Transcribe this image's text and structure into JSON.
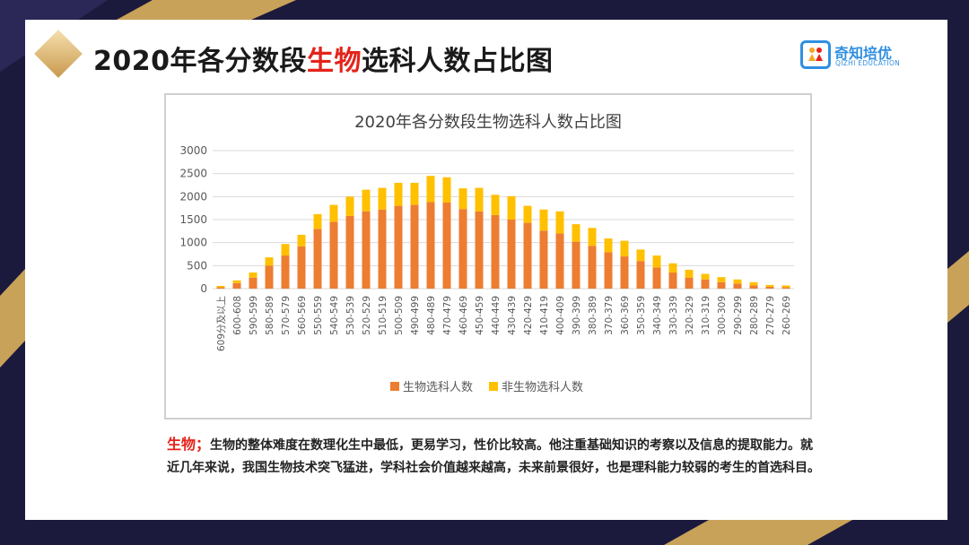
{
  "page": {
    "title_prefix": "2020年各分数段",
    "title_highlight": "生物",
    "title_suffix": "选科人数占比图",
    "accent_color": "#e3241b"
  },
  "logo": {
    "name": "奇知培优",
    "subtitle": "QIZHI EDUCATION",
    "color": "#2f8fe0"
  },
  "description": {
    "label": "生物；",
    "text": "生物的整体难度在数理化生中最低，更易学习，性价比较高。他注重基础知识的考察以及信息的提取能力。就近几年来说，我国生物技术突飞猛进，学科社会价值越来越高，未来前景很好，也是理科能力较弱的考生的首选科目。"
  },
  "chart_data": {
    "type": "bar",
    "stacked": true,
    "title": "2020年各分数段生物选科人数占比图",
    "categories": [
      "609分及以上",
      "600-608",
      "590-599",
      "580-589",
      "570-579",
      "560-569",
      "550-559",
      "540-549",
      "530-539",
      "520-529",
      "510-519",
      "500-509",
      "490-499",
      "480-489",
      "470-479",
      "460-469",
      "450-459",
      "440-449",
      "430-439",
      "420-429",
      "410-419",
      "400-409",
      "390-399",
      "380-389",
      "370-379",
      "360-369",
      "350-359",
      "340-349",
      "330-339",
      "320-329",
      "310-319",
      "300-309",
      "290-299",
      "280-289",
      "270-279",
      "260-269"
    ],
    "series": [
      {
        "name": "生物选科人数",
        "color": "#ed7d31",
        "values": [
          30,
          120,
          240,
          500,
          720,
          920,
          1300,
          1450,
          1580,
          1680,
          1720,
          1800,
          1820,
          1880,
          1870,
          1730,
          1680,
          1600,
          1500,
          1430,
          1260,
          1200,
          1020,
          930,
          790,
          700,
          600,
          460,
          350,
          240,
          200,
          140,
          110,
          70,
          40,
          30
        ]
      },
      {
        "name": "非生物选科人数",
        "color": "#ffc000",
        "values": [
          30,
          60,
          110,
          180,
          250,
          250,
          320,
          370,
          420,
          470,
          470,
          500,
          480,
          570,
          550,
          450,
          510,
          440,
          510,
          370,
          460,
          480,
          380,
          390,
          300,
          340,
          250,
          260,
          200,
          170,
          120,
          110,
          90,
          70,
          40,
          40
        ]
      }
    ],
    "yticks": [
      0,
      500,
      1000,
      1500,
      2000,
      2500,
      3000
    ],
    "ylim": [
      0,
      3000
    ],
    "grid": true,
    "legend_position": "bottom"
  }
}
